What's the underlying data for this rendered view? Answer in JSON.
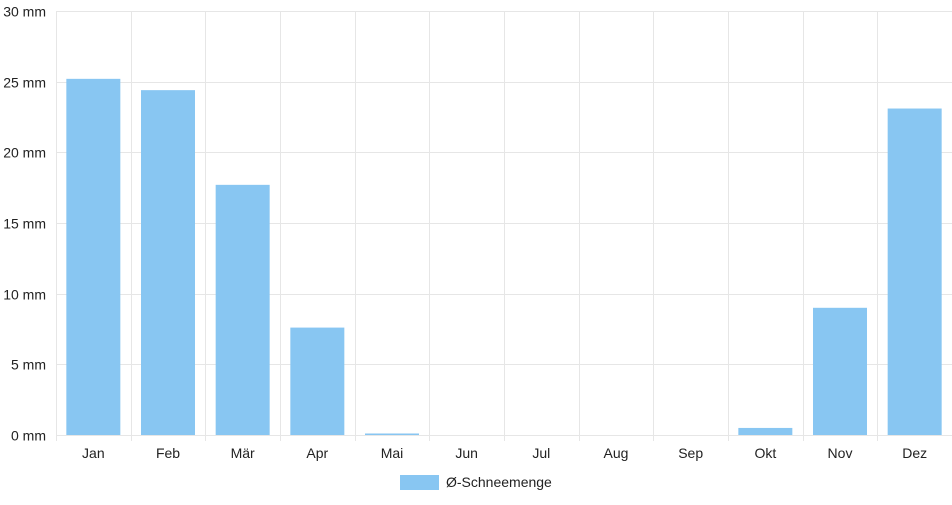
{
  "chart_data": {
    "type": "bar",
    "categories": [
      "Jan",
      "Feb",
      "Mär",
      "Apr",
      "Mai",
      "Jun",
      "Jul",
      "Aug",
      "Sep",
      "Okt",
      "Nov",
      "Dez"
    ],
    "series": [
      {
        "name": "Ø-Schneemenge",
        "values": [
          25.2,
          24.4,
          17.7,
          7.6,
          0.1,
          0,
          0,
          0,
          0,
          0.5,
          9.0,
          23.1
        ],
        "color": "#88c6f2"
      }
    ],
    "y_ticks": [
      "0 mm",
      "5 mm",
      "10 mm",
      "15 mm",
      "20 mm",
      "25 mm",
      "30 mm"
    ],
    "ylim": [
      0,
      30
    ],
    "unit": "mm",
    "grid": true,
    "legend_position": "bottom-center",
    "colors": {
      "grid": "#e6e6e6",
      "axis_text": "#222222",
      "bar": "#88c6f2"
    }
  }
}
